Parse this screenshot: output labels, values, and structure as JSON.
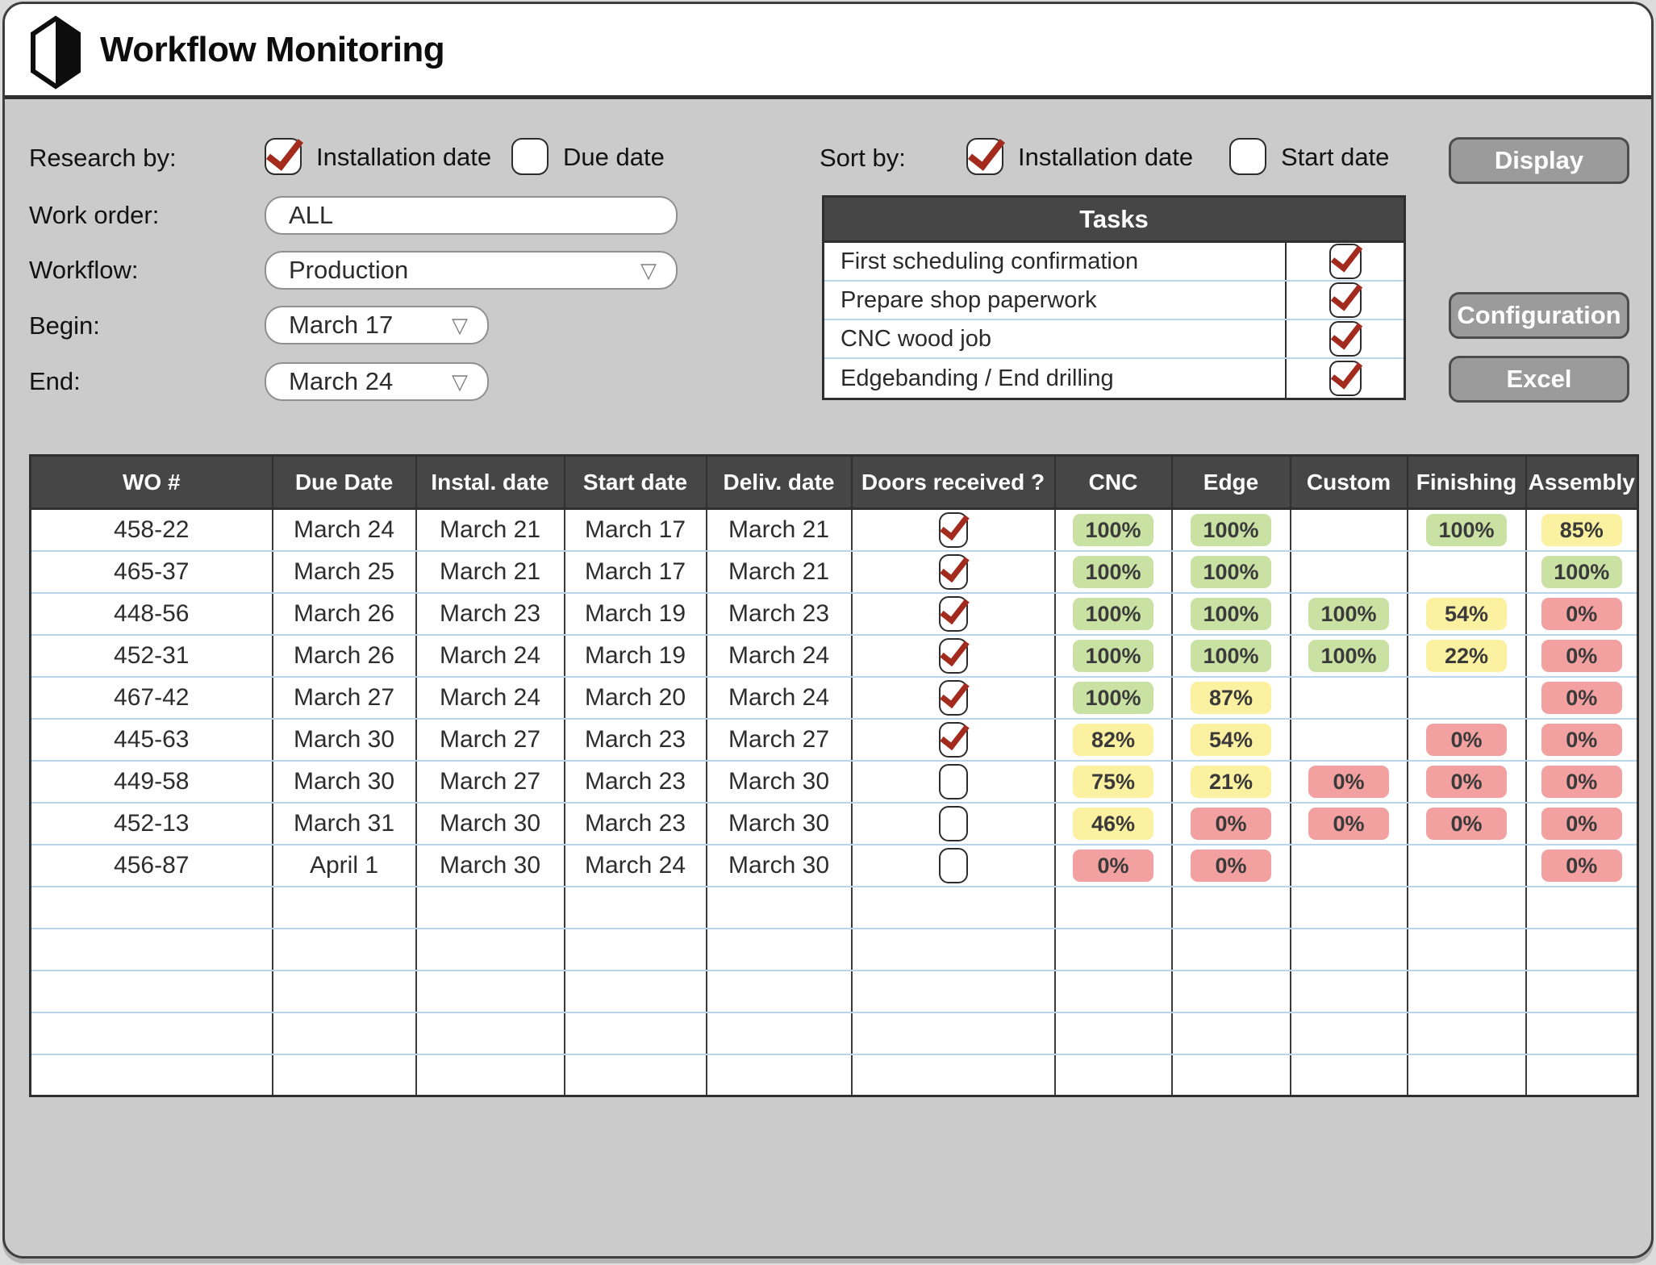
{
  "header": {
    "title": "Workflow Monitoring"
  },
  "filters": {
    "research_by": {
      "label": "Research by:",
      "options": [
        {
          "label": "Installation date",
          "checked": true
        },
        {
          "label": "Due date",
          "checked": false
        }
      ]
    },
    "work_order": {
      "label": "Work order:",
      "value": "ALL"
    },
    "workflow": {
      "label": "Workflow:",
      "value": "Production"
    },
    "begin": {
      "label": "Begin:",
      "value": "March 17"
    },
    "end": {
      "label": "End:",
      "value": "March 24"
    }
  },
  "sort_by": {
    "label": "Sort by:",
    "options": [
      {
        "label": "Installation date",
        "checked": true
      },
      {
        "label": "Start date",
        "checked": false
      }
    ]
  },
  "tasks": {
    "title": "Tasks",
    "items": [
      {
        "label": "First scheduling confirmation",
        "checked": true
      },
      {
        "label": "Prepare shop paperwork",
        "checked": true
      },
      {
        "label": "CNC wood job",
        "checked": true
      },
      {
        "label": "Edgebanding / End drilling",
        "checked": true
      }
    ]
  },
  "buttons": {
    "display": "Display",
    "configuration": "Configuration",
    "excel": "Excel"
  },
  "table": {
    "columns": [
      "WO #",
      "Due Date",
      "Instal. date",
      "Start date",
      "Deliv. date",
      "Doors received ?",
      "CNC",
      "Edge",
      "Custom",
      "Finishing",
      "Assembly"
    ],
    "empty_rows": 5,
    "rows": [
      {
        "wo": "458-22",
        "due_date": "March 24",
        "instal_date": "March 21",
        "start_date": "March 17",
        "deliv_date": "March 21",
        "doors_received": true,
        "steps": {
          "cnc": {
            "value": "100%",
            "status": "green"
          },
          "edge": {
            "value": "100%",
            "status": "green"
          },
          "custom": null,
          "finishing": {
            "value": "100%",
            "status": "green"
          },
          "assembly": {
            "value": "85%",
            "status": "yellow"
          }
        }
      },
      {
        "wo": "465-37",
        "due_date": "March 25",
        "instal_date": "March 21",
        "start_date": "March 17",
        "deliv_date": "March 21",
        "doors_received": true,
        "steps": {
          "cnc": {
            "value": "100%",
            "status": "green"
          },
          "edge": {
            "value": "100%",
            "status": "green"
          },
          "custom": null,
          "finishing": null,
          "assembly": {
            "value": "100%",
            "status": "green"
          }
        }
      },
      {
        "wo": "448-56",
        "due_date": "March 26",
        "instal_date": "March 23",
        "start_date": "March 19",
        "deliv_date": "March 23",
        "doors_received": true,
        "steps": {
          "cnc": {
            "value": "100%",
            "status": "green"
          },
          "edge": {
            "value": "100%",
            "status": "green"
          },
          "custom": {
            "value": "100%",
            "status": "green"
          },
          "finishing": {
            "value": "54%",
            "status": "yellow"
          },
          "assembly": {
            "value": "0%",
            "status": "red"
          }
        }
      },
      {
        "wo": "452-31",
        "due_date": "March 26",
        "instal_date": "March 24",
        "start_date": "March 19",
        "deliv_date": "March 24",
        "doors_received": true,
        "steps": {
          "cnc": {
            "value": "100%",
            "status": "green"
          },
          "edge": {
            "value": "100%",
            "status": "green"
          },
          "custom": {
            "value": "100%",
            "status": "green"
          },
          "finishing": {
            "value": "22%",
            "status": "yellow"
          },
          "assembly": {
            "value": "0%",
            "status": "red"
          }
        }
      },
      {
        "wo": "467-42",
        "due_date": "March 27",
        "instal_date": "March 24",
        "start_date": "March 20",
        "deliv_date": "March 24",
        "doors_received": true,
        "steps": {
          "cnc": {
            "value": "100%",
            "status": "green"
          },
          "edge": {
            "value": "87%",
            "status": "yellow"
          },
          "custom": null,
          "finishing": null,
          "assembly": {
            "value": "0%",
            "status": "red"
          }
        }
      },
      {
        "wo": "445-63",
        "due_date": "March 30",
        "instal_date": "March 27",
        "start_date": "March 23",
        "deliv_date": "March 27",
        "doors_received": true,
        "steps": {
          "cnc": {
            "value": "82%",
            "status": "yellow"
          },
          "edge": {
            "value": "54%",
            "status": "yellow"
          },
          "custom": null,
          "finishing": {
            "value": "0%",
            "status": "red"
          },
          "assembly": {
            "value": "0%",
            "status": "red"
          }
        }
      },
      {
        "wo": "449-58",
        "due_date": "March 30",
        "instal_date": "March 27",
        "start_date": "March 23",
        "deliv_date": "March 30",
        "doors_received": false,
        "steps": {
          "cnc": {
            "value": "75%",
            "status": "yellow"
          },
          "edge": {
            "value": "21%",
            "status": "yellow"
          },
          "custom": {
            "value": "0%",
            "status": "red"
          },
          "finishing": {
            "value": "0%",
            "status": "red"
          },
          "assembly": {
            "value": "0%",
            "status": "red"
          }
        }
      },
      {
        "wo": "452-13",
        "due_date": "March 31",
        "instal_date": "March 30",
        "start_date": "March 23",
        "deliv_date": "March 30",
        "doors_received": false,
        "steps": {
          "cnc": {
            "value": "46%",
            "status": "yellow"
          },
          "edge": {
            "value": "0%",
            "status": "red"
          },
          "custom": {
            "value": "0%",
            "status": "red"
          },
          "finishing": {
            "value": "0%",
            "status": "red"
          },
          "assembly": {
            "value": "0%",
            "status": "red"
          }
        }
      },
      {
        "wo": "456-87",
        "due_date": "April 1",
        "instal_date": "March 30",
        "start_date": "March 24",
        "deliv_date": "March 30",
        "doors_received": false,
        "steps": {
          "cnc": {
            "value": "0%",
            "status": "red"
          },
          "edge": {
            "value": "0%",
            "status": "red"
          },
          "custom": null,
          "finishing": null,
          "assembly": {
            "value": "0%",
            "status": "red"
          }
        }
      }
    ]
  },
  "colors": {
    "check_red": "#a32b1d",
    "chip_green": "#c9e2a4",
    "chip_yellow": "#fbf1a1",
    "chip_red": "#f2a0a0",
    "panel_header": "#464646",
    "row_divider": "#b9d5ea"
  }
}
